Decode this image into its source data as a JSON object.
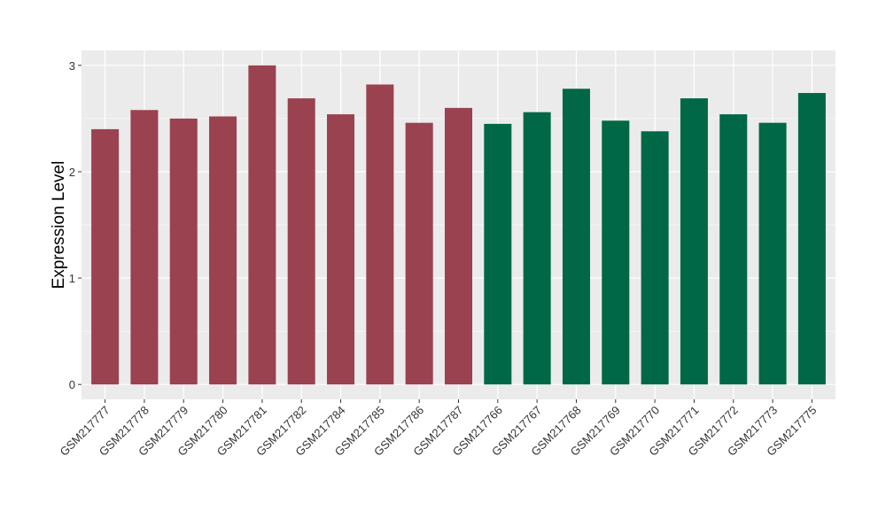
{
  "chart_data": {
    "type": "bar",
    "title": "",
    "xlabel": "",
    "ylabel": "Expression Level",
    "ylim": [
      -0.14,
      3.14
    ],
    "yticks": [
      0,
      1,
      2,
      3
    ],
    "grid": true,
    "legend": "none",
    "colors": {
      "group_a": "#9a4250",
      "group_b": "#006846",
      "panel": "#ebebeb",
      "gridline": "#ffffff",
      "tick": "#333333"
    },
    "categories": [
      "GSM217777",
      "GSM217778",
      "GSM217779",
      "GSM217780",
      "GSM217781",
      "GSM217782",
      "GSM217784",
      "GSM217785",
      "GSM217786",
      "GSM217787",
      "GSM217766",
      "GSM217767",
      "GSM217768",
      "GSM217769",
      "GSM217770",
      "GSM217771",
      "GSM217772",
      "GSM217773",
      "GSM217775"
    ],
    "values": [
      2.4,
      2.58,
      2.5,
      2.52,
      3.0,
      2.69,
      2.54,
      2.82,
      2.46,
      2.6,
      2.45,
      2.56,
      2.78,
      2.48,
      2.38,
      2.69,
      2.54,
      2.46,
      2.74
    ],
    "groups": [
      "a",
      "a",
      "a",
      "a",
      "a",
      "a",
      "a",
      "a",
      "a",
      "a",
      "b",
      "b",
      "b",
      "b",
      "b",
      "b",
      "b",
      "b",
      "b"
    ]
  }
}
